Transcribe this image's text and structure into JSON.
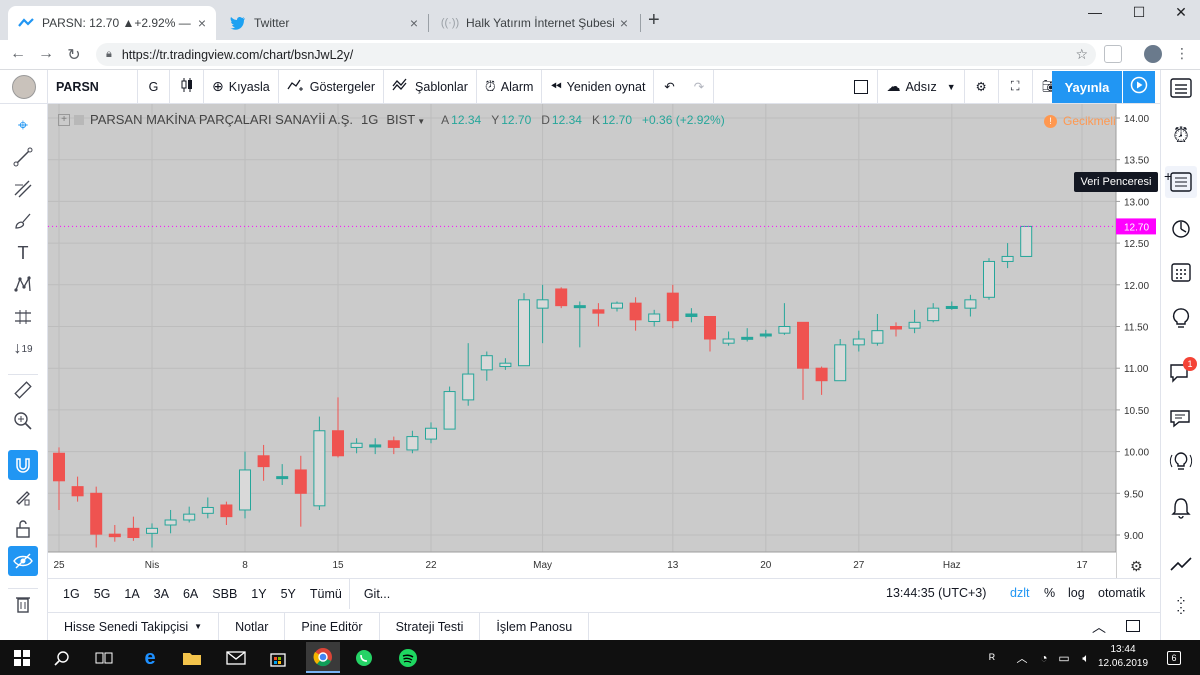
{
  "browser": {
    "tabs": [
      {
        "title": "PARSN: 12.70 ▲+2.92% — Adsız",
        "close": "×"
      },
      {
        "title": "Twitter",
        "close": "×"
      },
      {
        "title": "Halk Yatırım İnternet Şubesi",
        "close": "×"
      }
    ],
    "new_tab": "+",
    "url": "https://tr.tradingview.com/chart/bsnJwL2y/"
  },
  "toolbar": {
    "symbol": "PARSN",
    "interval": "G",
    "compare": "Kıyasla",
    "indicators": "Göstergeler",
    "templates": "Şablonlar",
    "alert": "Alarm",
    "replay": "Yeniden oynat",
    "layout_name": "Adsız",
    "publish": "Yayınla"
  },
  "tooltip": "Veri Penceresi",
  "chart_data": {
    "type": "candlestick",
    "legend": {
      "name": "PARSAN MAKİNA PARÇALARI SANAYİİ A.Ş.",
      "interval": "1G",
      "exchange": "BIST",
      "open_label": "A",
      "open": "12.34",
      "high_label": "Y",
      "high": "12.70",
      "low_label": "D",
      "low": "12.34",
      "close_label": "K",
      "close": "12.70",
      "change": "+0.36 (+2.92%)"
    },
    "delay_label": "Gecikmeli",
    "price_badge": "12.70",
    "ylim": [
      8.85,
      14.1
    ],
    "y_ticks": [
      "14.00",
      "13.50",
      "13.00",
      "12.50",
      "12.00",
      "11.50",
      "11.00",
      "10.50",
      "10.00",
      "9.50",
      "9.00"
    ],
    "x_labels": [
      {
        "i": 0,
        "label": "25"
      },
      {
        "i": 5,
        "label": "Nis"
      },
      {
        "i": 10,
        "label": "8"
      },
      {
        "i": 15,
        "label": "15"
      },
      {
        "i": 20,
        "label": "22"
      },
      {
        "i": 26,
        "label": "May"
      },
      {
        "i": 33,
        "label": "13"
      },
      {
        "i": 38,
        "label": "20"
      },
      {
        "i": 43,
        "label": "27"
      },
      {
        "i": 48,
        "label": "Haz"
      },
      {
        "i": 55,
        "label": "17"
      }
    ],
    "candles": [
      [
        9.98,
        10.05,
        9.3,
        9.65
      ],
      [
        9.58,
        9.7,
        9.4,
        9.47
      ],
      [
        9.5,
        9.58,
        8.85,
        9.01
      ],
      [
        9.01,
        9.12,
        8.92,
        8.98
      ],
      [
        9.08,
        9.22,
        8.93,
        8.97
      ],
      [
        9.02,
        9.14,
        8.85,
        9.08
      ],
      [
        9.12,
        9.3,
        9.02,
        9.18
      ],
      [
        9.18,
        9.34,
        9.15,
        9.25
      ],
      [
        9.26,
        9.45,
        9.2,
        9.33
      ],
      [
        9.36,
        9.4,
        9.12,
        9.22
      ],
      [
        9.3,
        10.0,
        9.2,
        9.78
      ],
      [
        9.95,
        10.08,
        9.65,
        9.82
      ],
      [
        9.7,
        9.85,
        9.6,
        9.7
      ],
      [
        9.78,
        9.95,
        9.1,
        9.5
      ],
      [
        9.35,
        10.42,
        9.3,
        10.25
      ],
      [
        10.25,
        10.65,
        9.93,
        9.95
      ],
      [
        10.05,
        10.16,
        9.98,
        10.1
      ],
      [
        10.08,
        10.16,
        9.97,
        10.08
      ],
      [
        10.13,
        10.18,
        9.97,
        10.05
      ],
      [
        10.02,
        10.25,
        9.98,
        10.18
      ],
      [
        10.15,
        10.35,
        10.1,
        10.28
      ],
      [
        10.27,
        10.78,
        10.27,
        10.72
      ],
      [
        10.62,
        11.3,
        10.55,
        10.93
      ],
      [
        10.98,
        11.2,
        10.85,
        11.15
      ],
      [
        11.02,
        11.12,
        10.98,
        11.06
      ],
      [
        11.03,
        11.9,
        11.03,
        11.82
      ],
      [
        11.72,
        12.0,
        11.3,
        11.82
      ],
      [
        11.95,
        11.97,
        11.72,
        11.75
      ],
      [
        11.73,
        11.8,
        11.25,
        11.75
      ],
      [
        11.7,
        11.78,
        11.5,
        11.66
      ],
      [
        11.72,
        11.8,
        11.68,
        11.78
      ],
      [
        11.78,
        11.85,
        11.45,
        11.58
      ],
      [
        11.56,
        11.7,
        11.5,
        11.65
      ],
      [
        11.9,
        12.0,
        11.48,
        11.57
      ],
      [
        11.62,
        11.72,
        11.55,
        11.65
      ],
      [
        11.62,
        11.62,
        11.2,
        11.35
      ],
      [
        11.3,
        11.44,
        11.27,
        11.35
      ],
      [
        11.36,
        11.48,
        11.32,
        11.37
      ],
      [
        11.4,
        11.46,
        11.36,
        11.41
      ],
      [
        11.42,
        11.78,
        11.4,
        11.5
      ],
      [
        11.55,
        11.55,
        10.62,
        11.0
      ],
      [
        11.0,
        11.02,
        10.68,
        10.85
      ],
      [
        10.85,
        11.35,
        10.85,
        11.28
      ],
      [
        11.28,
        11.45,
        11.2,
        11.35
      ],
      [
        11.3,
        11.65,
        11.27,
        11.45
      ],
      [
        11.5,
        11.55,
        11.38,
        11.47
      ],
      [
        11.48,
        11.7,
        11.42,
        11.55
      ],
      [
        11.57,
        11.78,
        11.55,
        11.72
      ],
      [
        11.74,
        11.8,
        11.7,
        11.74
      ],
      [
        11.72,
        11.88,
        11.62,
        11.82
      ],
      [
        11.85,
        12.32,
        11.82,
        12.28
      ],
      [
        12.28,
        12.5,
        12.2,
        12.34
      ],
      [
        12.34,
        12.7,
        12.34,
        12.7
      ]
    ],
    "up_color": "#26a69a",
    "down_color": "#ef5350",
    "up_fill": "#d9d9d9"
  },
  "periods": [
    "1G",
    "5G",
    "1A",
    "3A",
    "6A",
    "SBB",
    "1Y",
    "5Y",
    "Tümü"
  ],
  "goto": "Git...",
  "status": {
    "time": "13:44:35 (UTC+3)",
    "adjust": "dzlt",
    "percent": "%",
    "log": "log",
    "auto": "otomatik"
  },
  "panel_tabs": [
    "Hisse Senedi Takipçisi",
    "Notlar",
    "Pine Editör",
    "Strateji Testi",
    "İşlem Panosu"
  ],
  "taskbar": {
    "time": "13:44",
    "date": "12.06.2019",
    "notif_count": "6"
  },
  "right_badge": "1"
}
